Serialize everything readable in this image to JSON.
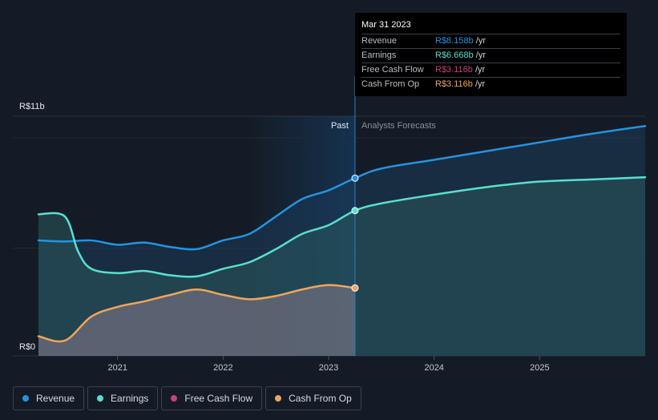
{
  "chart_data": {
    "type": "line",
    "y_axis": {
      "top_label": "R$11b",
      "bottom_label": "R$0",
      "ylim": [
        0,
        11
      ]
    },
    "x_axis": {
      "ticks": [
        "2021",
        "2022",
        "2023",
        "2024",
        "2025"
      ],
      "xlim": [
        2020.25,
        2026.0
      ]
    },
    "regions": {
      "past_label": "Past",
      "forecast_label": "Analysts Forecasts",
      "split_x": 2023.25
    },
    "series": [
      {
        "name": "Revenue",
        "color": "#2394df",
        "x": [
          2020.25,
          2020.5,
          2020.75,
          2021.0,
          2021.25,
          2021.5,
          2021.75,
          2022.0,
          2022.25,
          2022.5,
          2022.75,
          2023.0,
          2023.25,
          2023.5,
          2024.0,
          2024.5,
          2025.0,
          2025.5,
          2026.0
        ],
        "values": [
          5.3,
          5.25,
          5.3,
          5.1,
          5.2,
          5.0,
          4.9,
          5.3,
          5.6,
          6.4,
          7.2,
          7.6,
          8.158,
          8.6,
          9.0,
          9.4,
          9.8,
          10.2,
          10.55
        ]
      },
      {
        "name": "Earnings",
        "color": "#58e0cf",
        "x": [
          2020.25,
          2020.5,
          2020.625,
          2020.75,
          2021.0,
          2021.25,
          2021.5,
          2021.75,
          2022.0,
          2022.25,
          2022.5,
          2022.75,
          2023.0,
          2023.25,
          2023.5,
          2024.0,
          2024.5,
          2025.0,
          2025.5,
          2026.0
        ],
        "values": [
          6.5,
          6.4,
          4.8,
          4.0,
          3.8,
          3.9,
          3.7,
          3.65,
          4.0,
          4.3,
          4.9,
          5.6,
          6.0,
          6.668,
          7.0,
          7.4,
          7.75,
          8.0,
          8.1,
          8.2
        ]
      },
      {
        "name": "Free Cash Flow",
        "color": "#c9407f",
        "x": [],
        "values": []
      },
      {
        "name": "Cash From Op",
        "color": "#f0a55a",
        "x": [
          2020.25,
          2020.5,
          2020.75,
          2021.0,
          2021.25,
          2021.5,
          2021.75,
          2022.0,
          2022.25,
          2022.5,
          2022.75,
          2023.0,
          2023.25
        ],
        "values": [
          0.9,
          0.7,
          1.8,
          2.25,
          2.5,
          2.8,
          3.05,
          2.8,
          2.6,
          2.75,
          3.05,
          3.25,
          3.116
        ]
      }
    ]
  },
  "tooltip": {
    "date": "Mar 31 2023",
    "rows": [
      {
        "label": "Revenue",
        "value": "R$8.158b",
        "unit": " /yr",
        "color": "#2394df"
      },
      {
        "label": "Earnings",
        "value": "R$6.668b",
        "unit": " /yr",
        "color": "#58e0cf"
      },
      {
        "label": "Free Cash Flow",
        "value": "R$3.116b",
        "unit": " /yr",
        "color": "#c9407f"
      },
      {
        "label": "Cash From Op",
        "value": "R$3.116b",
        "unit": " /yr",
        "color": "#f0a55a"
      }
    ]
  },
  "legend": [
    {
      "label": "Revenue",
      "color": "#2394df"
    },
    {
      "label": "Earnings",
      "color": "#58e0cf"
    },
    {
      "label": "Free Cash Flow",
      "color": "#c9407f"
    },
    {
      "label": "Cash From Op",
      "color": "#f0a55a"
    }
  ]
}
